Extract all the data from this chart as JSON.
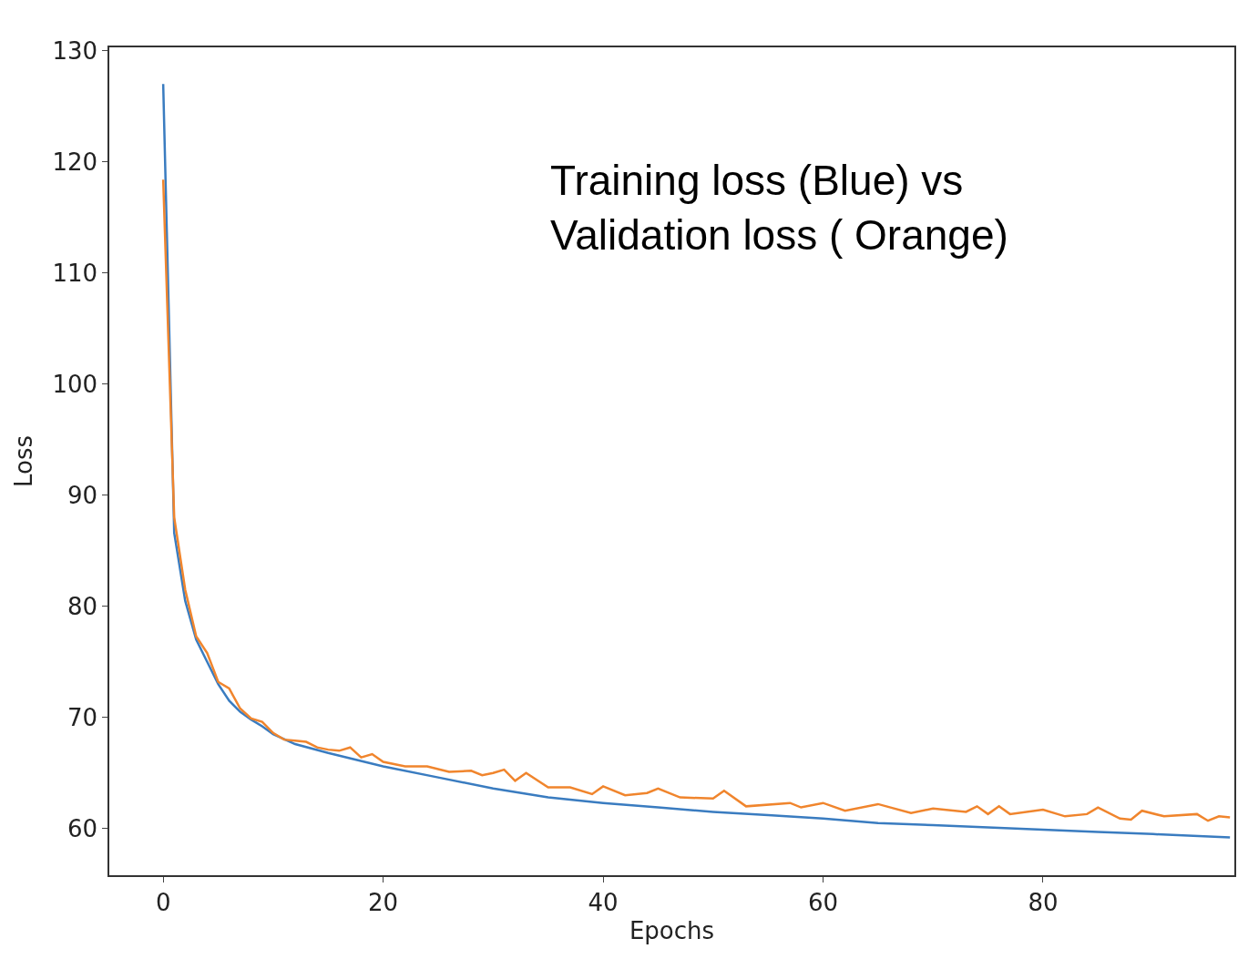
{
  "chart_data": {
    "type": "line",
    "xlabel": "Epochs",
    "ylabel": "Loss",
    "annotations": [
      "Training loss (Blue) vs\nValidation loss ( Orange)"
    ],
    "xlim": [
      -4.9,
      97.4
    ],
    "ylim": [
      55.8,
      130.3
    ],
    "xticks": [
      0,
      20,
      40,
      60,
      80
    ],
    "yticks": [
      60,
      70,
      80,
      90,
      100,
      110,
      120,
      130
    ],
    "line_style": "solid",
    "marker": "none",
    "series": [
      {
        "color": "#3a7cc0",
        "x": [
          0,
          1,
          2,
          3,
          4,
          5,
          6,
          7,
          8,
          9,
          10,
          12,
          15,
          20,
          25,
          30,
          35,
          40,
          45,
          50,
          55,
          60,
          65,
          70,
          75,
          80,
          85,
          90,
          97
        ],
        "values": [
          127,
          86.6,
          80.5,
          77,
          75,
          73,
          71.5,
          70.5,
          69.8,
          69.2,
          68.5,
          67.6,
          66.8,
          65.6,
          64.6,
          63.6,
          62.8,
          62.3,
          61.9,
          61.5,
          61.2,
          60.9,
          60.5,
          60.3,
          60.1,
          59.9,
          59.7,
          59.5,
          59.2
        ]
      },
      {
        "color": "#f0852d",
        "x": [
          0,
          1,
          2,
          3,
          4,
          5,
          6,
          7,
          8,
          9,
          10,
          11,
          12,
          13,
          14,
          15,
          16,
          17,
          18,
          19,
          20,
          22,
          24,
          26,
          28,
          29,
          30,
          31,
          32,
          33,
          35,
          37,
          39,
          40,
          42,
          44,
          45,
          47,
          50,
          51,
          53,
          57,
          58,
          60,
          62,
          65,
          68,
          70,
          73,
          74,
          75,
          76,
          77,
          80,
          82,
          84,
          85,
          87,
          88,
          89,
          91,
          94,
          95,
          96,
          97
        ],
        "values": [
          118.4,
          88,
          81.5,
          77.3,
          75.8,
          73.2,
          72.6,
          70.8,
          69.9,
          69.6,
          68.6,
          68.0,
          67.9,
          67.8,
          67.3,
          67.1,
          67.0,
          67.3,
          66.4,
          66.7,
          66.0,
          65.6,
          65.6,
          65.1,
          65.2,
          64.8,
          65.0,
          65.3,
          64.3,
          65.0,
          63.7,
          63.7,
          63.1,
          63.8,
          63.0,
          63.2,
          63.6,
          62.8,
          62.7,
          63.4,
          62.0,
          62.3,
          61.9,
          62.3,
          61.6,
          62.2,
          61.4,
          61.8,
          61.5,
          62.0,
          61.3,
          62.0,
          61.3,
          61.7,
          61.1,
          61.3,
          61.9,
          60.9,
          60.8,
          61.6,
          61.1,
          61.3,
          60.7,
          61.1,
          61.0
        ]
      }
    ]
  }
}
